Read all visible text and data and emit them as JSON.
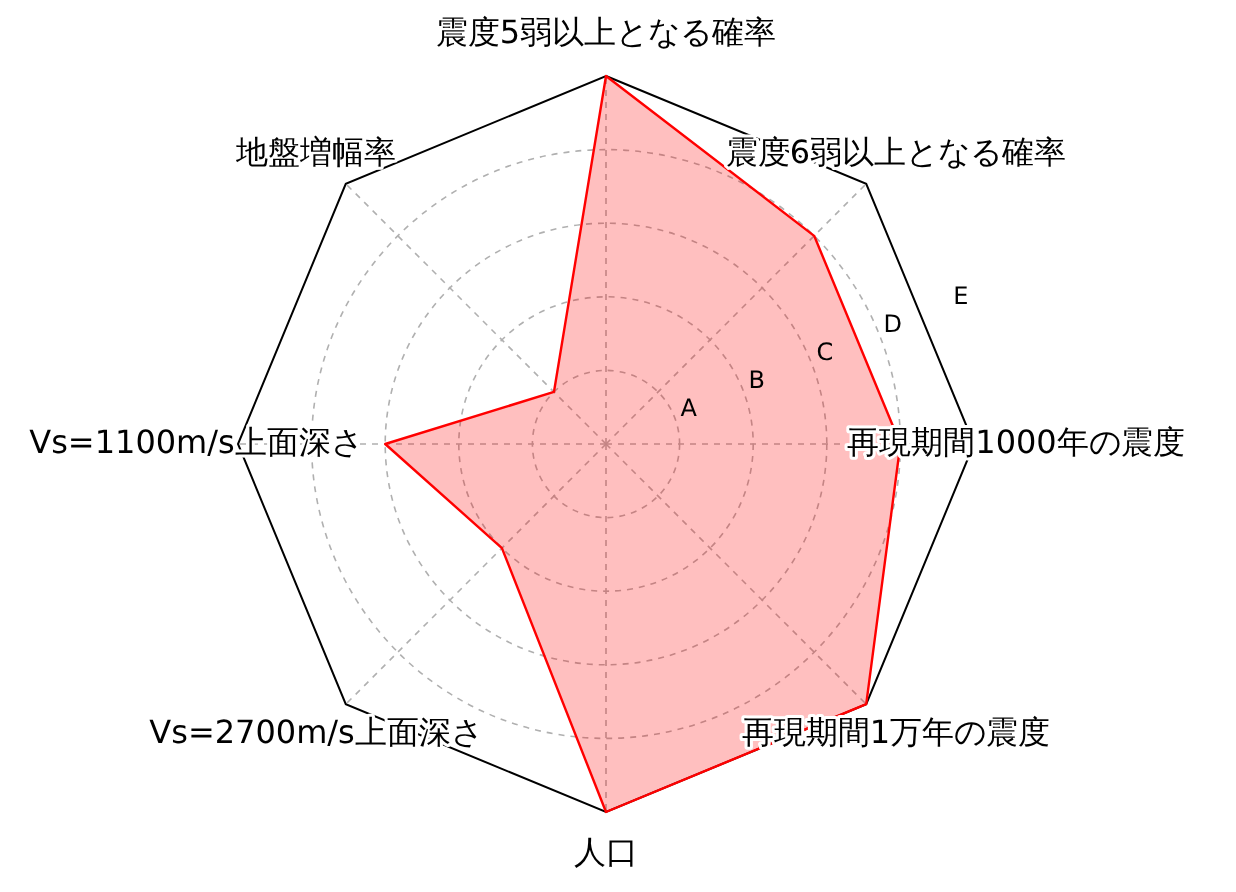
{
  "chart_data": {
    "type": "radar",
    "categories": [
      "震度5弱以上となる確率",
      "震度6弱以上となる確率",
      "再現期間1000年の震度",
      "再現期間1万年の震度",
      "人口",
      "Vs=2700m/s上面深さ",
      "Vs=1100m/s上面深さ",
      "地盤増幅率"
    ],
    "series": [
      {
        "color": "#ff0000",
        "values": [
          5,
          4,
          4,
          5,
          5,
          2,
          3,
          1
        ]
      }
    ],
    "ylim": [
      0,
      5
    ],
    "yticks": [
      {
        "value": 1,
        "label": "A"
      },
      {
        "value": 2,
        "label": "B"
      },
      {
        "value": 3,
        "label": "C"
      },
      {
        "value": 4,
        "label": "D"
      },
      {
        "value": 5,
        "label": "E"
      }
    ],
    "grid": true
  }
}
